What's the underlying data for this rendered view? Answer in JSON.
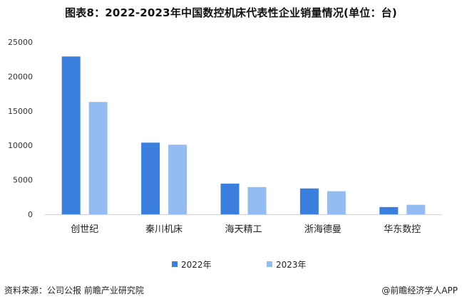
{
  "chart_data": {
    "type": "bar",
    "title": "图表8：2022-2023年中国数控机床代表性企业销量情况(单位：台)",
    "categories": [
      "创世纪",
      "秦川机床",
      "海天精工",
      "浙海德曼",
      "华东数控"
    ],
    "series": [
      {
        "name": "2022年",
        "values": [
          22900,
          10400,
          4450,
          3750,
          1050
        ],
        "color": "#3A7FDE"
      },
      {
        "name": "2023年",
        "values": [
          16300,
          10100,
          3950,
          3350,
          1380
        ],
        "color": "#93BDF2"
      }
    ],
    "ylim": [
      0,
      25000
    ],
    "yticks": [
      0,
      5000,
      10000,
      15000,
      20000,
      25000
    ],
    "grid": false,
    "legend_position": "bottom"
  },
  "footer": {
    "source": "资料来源：公司公报 前瞻产业研究院",
    "watermark": "@前瞻经济学人APP"
  }
}
